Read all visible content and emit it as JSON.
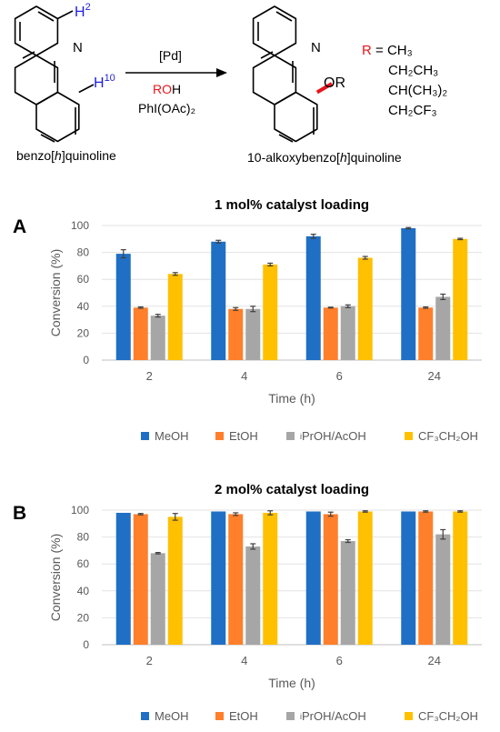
{
  "scheme": {
    "reactant_label": {
      "pre": "benzo[",
      "it": "h",
      "post": "]quinoline"
    },
    "product_label": {
      "pre": "10-alkoxybenzo[",
      "it": "h",
      "post": "]quinoline"
    },
    "h2": {
      "h": "H",
      "n": "2"
    },
    "h10": {
      "h": "H",
      "n": "10"
    },
    "nitrogen": "N",
    "or_group": "OR",
    "reagents": {
      "catalyst": "[Pd]",
      "alcohol_r": "RO",
      "alcohol_h": "H",
      "oxidant": "PhI(OAc)₂"
    },
    "r_definition": {
      "r": "R",
      "eq": " = ",
      "groups": [
        "CH₃",
        "CH₂CH₃",
        "CH(CH₃)₂",
        "CH₂CF₃"
      ]
    },
    "colors": {
      "red": "#e8141b",
      "blue": "#1f1fe0",
      "bond_red": "#e8141b"
    }
  },
  "legend": {
    "items": [
      {
        "label": "MeOH",
        "color": "#1f6fc5"
      },
      {
        "label": "EtOH",
        "color": "#ff7f2a"
      },
      {
        "sup": "i",
        "label": "PrOH/AcOH",
        "color": "#a6a6a6"
      },
      {
        "label": "CF₃CH₂OH",
        "color": "#ffc000"
      }
    ]
  },
  "chart_data": [
    {
      "panel": "A",
      "type": "bar",
      "title": "1 mol% catalyst loading",
      "xlabel": "Time (h)",
      "ylabel": "Conversion (%)",
      "ylim": [
        0,
        100
      ],
      "yticks": [
        0,
        20,
        40,
        60,
        80,
        100
      ],
      "categories": [
        "2",
        "4",
        "6",
        "24"
      ],
      "series": [
        {
          "name": "MeOH",
          "color": "#1f6fc5",
          "values": [
            79,
            88,
            92,
            98
          ],
          "errors": [
            3,
            1,
            1.5,
            0.5
          ]
        },
        {
          "name": "EtOH",
          "color": "#ff7f2a",
          "values": [
            39,
            38,
            39,
            39
          ],
          "errors": [
            0.5,
            1,
            0.3,
            0.5
          ]
        },
        {
          "name": "iPrOH/AcOH",
          "color": "#a6a6a6",
          "values": [
            33,
            38,
            40,
            47
          ],
          "errors": [
            1,
            2,
            1,
            2
          ]
        },
        {
          "name": "CF3CH2OH",
          "color": "#ffc000",
          "values": [
            64,
            71,
            76,
            90
          ],
          "errors": [
            1,
            1,
            1,
            0.5
          ]
        }
      ]
    },
    {
      "panel": "B",
      "type": "bar",
      "title": "2 mol% catalyst loading",
      "xlabel": "Time (h)",
      "ylabel": "Conversion (%)",
      "ylim": [
        0,
        100
      ],
      "yticks": [
        0,
        20,
        40,
        60,
        80,
        100
      ],
      "categories": [
        "2",
        "4",
        "6",
        "24"
      ],
      "series": [
        {
          "name": "MeOH",
          "color": "#1f6fc5",
          "values": [
            98,
            99,
            99,
            99
          ],
          "errors": [
            0,
            0,
            0,
            0
          ]
        },
        {
          "name": "EtOH",
          "color": "#ff7f2a",
          "values": [
            97,
            97,
            97,
            99
          ],
          "errors": [
            0.5,
            1,
            1.5,
            0.5
          ]
        },
        {
          "name": "iPrOH/AcOH",
          "color": "#a6a6a6",
          "values": [
            68,
            73,
            77,
            82
          ],
          "errors": [
            0.5,
            2,
            1,
            3.5
          ]
        },
        {
          "name": "CF3CH2OH",
          "color": "#ffc000",
          "values": [
            95,
            98,
            99,
            99
          ],
          "errors": [
            2.5,
            1.5,
            0.5,
            0.5
          ]
        }
      ]
    }
  ]
}
